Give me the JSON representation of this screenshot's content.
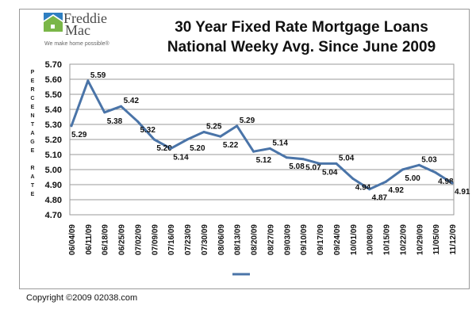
{
  "logo": {
    "name_line1": "Freddie",
    "name_line2": "Mac",
    "tagline": "We make home possible®",
    "colors": {
      "blue": "#2f7fc1",
      "green": "#7ab648"
    }
  },
  "copyright": "Copyright ©2009 02038.com",
  "chart_data": {
    "type": "line",
    "title": "30 Year Fixed Rate Mortgage Loans",
    "subtitle": "National Weeky Avg. Since June 2009",
    "ylabel": "PERCENTAGE RATE",
    "ylabel_letters": [
      "P",
      "E",
      "R",
      "C",
      "E",
      "N",
      "T",
      "A",
      "G",
      "E",
      "",
      "R",
      "A",
      "T",
      "E"
    ],
    "xlabel": "",
    "ylim": [
      4.7,
      5.7
    ],
    "yticks": [
      "5.70",
      "5.60",
      "5.50",
      "5.40",
      "5.30",
      "5.20",
      "5.10",
      "5.00",
      "4.90",
      "4.80",
      "4.70"
    ],
    "grid": true,
    "legend": "bottom",
    "line_color": "#4a74a8",
    "categories": [
      "06/04/09",
      "06/11/09",
      "06/18/09",
      "06/25/09",
      "07/02/09",
      "07/09/09",
      "07/16/09",
      "07/23/09",
      "07/30/09",
      "08/06/09",
      "08/13/09",
      "08/20/09",
      "08/27/09",
      "09/03/09",
      "09/10/09",
      "09/17/09",
      "09/24/09",
      "10/01/09",
      "10/08/09",
      "10/15/09",
      "10/22/09",
      "10/29/09",
      "11/05/09",
      "11/12/09"
    ],
    "values": [
      5.29,
      5.59,
      5.38,
      5.42,
      5.32,
      5.2,
      5.14,
      5.2,
      5.25,
      5.22,
      5.29,
      5.12,
      5.14,
      5.08,
      5.07,
      5.04,
      5.04,
      4.94,
      4.87,
      4.92,
      5.0,
      5.03,
      4.98,
      4.91
    ],
    "labels": [
      "5.29",
      "5.59",
      "5.38",
      "5.42",
      "5.32",
      "5.20",
      "5.14",
      "5.20",
      "5.25",
      "5.22",
      "5.29",
      "5.12",
      "5.14",
      "5.08",
      "5.07",
      "5.04",
      "5.04",
      "4.94",
      "4.87",
      "4.92",
      "5.00",
      "5.03",
      "4.98",
      "4.91"
    ]
  }
}
